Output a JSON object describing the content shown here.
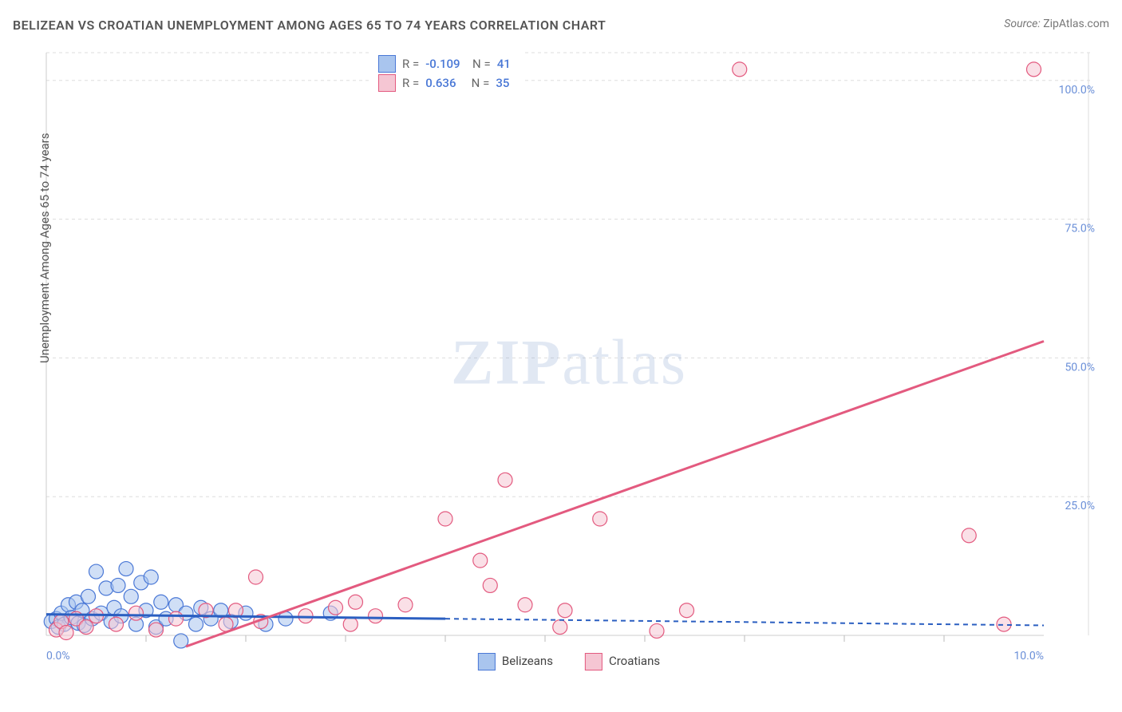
{
  "title": "BELIZEAN VS CROATIAN UNEMPLOYMENT AMONG AGES 65 TO 74 YEARS CORRELATION CHART",
  "source_label": "Source:",
  "source_value": "ZipAtlas.com",
  "ylabel": "Unemployment Among Ages 65 to 74 years",
  "watermark_zip": "ZIP",
  "watermark_atlas": "atlas",
  "chart": {
    "type": "scatter",
    "background_color": "#ffffff",
    "grid_color": "#dddddd",
    "xlim": [
      0,
      10
    ],
    "ylim": [
      0,
      105
    ],
    "xticks": [
      0,
      10
    ],
    "xtick_labels": [
      "0.0%",
      "10.0%"
    ],
    "yticks": [
      25,
      50,
      75,
      100
    ],
    "ytick_labels": [
      "25.0%",
      "50.0%",
      "75.0%",
      "100.0%"
    ],
    "x_minor_ticks": [
      1,
      2,
      3,
      4,
      5,
      6,
      7,
      8,
      9
    ],
    "series": [
      {
        "name": "Belizeans",
        "fill_color": "#a9c5ee",
        "stroke_color": "#4a78d6",
        "line_color": "#2b5fc1",
        "marker_radius": 9,
        "R": "-0.109",
        "N": "41",
        "trend_solid": {
          "x1": 0,
          "y1": 3.8,
          "x2": 4,
          "y2": 3.0
        },
        "trend_dashed": {
          "x1": 4,
          "y1": 3.0,
          "x2": 10,
          "y2": 1.8
        },
        "points": [
          {
            "x": 0.05,
            "y": 2.5
          },
          {
            "x": 0.1,
            "y": 3.0
          },
          {
            "x": 0.12,
            "y": 1.5
          },
          {
            "x": 0.15,
            "y": 4.0
          },
          {
            "x": 0.18,
            "y": 2.0
          },
          {
            "x": 0.22,
            "y": 5.5
          },
          {
            "x": 0.25,
            "y": 3.2
          },
          {
            "x": 0.3,
            "y": 6.0
          },
          {
            "x": 0.32,
            "y": 2.2
          },
          {
            "x": 0.36,
            "y": 4.5
          },
          {
            "x": 0.38,
            "y": 1.8
          },
          {
            "x": 0.42,
            "y": 7.0
          },
          {
            "x": 0.46,
            "y": 3.0
          },
          {
            "x": 0.5,
            "y": 11.5
          },
          {
            "x": 0.55,
            "y": 4.0
          },
          {
            "x": 0.6,
            "y": 8.5
          },
          {
            "x": 0.65,
            "y": 2.5
          },
          {
            "x": 0.68,
            "y": 5.0
          },
          {
            "x": 0.72,
            "y": 9.0
          },
          {
            "x": 0.75,
            "y": 3.5
          },
          {
            "x": 0.8,
            "y": 12.0
          },
          {
            "x": 0.85,
            "y": 7.0
          },
          {
            "x": 0.9,
            "y": 2.0
          },
          {
            "x": 0.95,
            "y": 9.5
          },
          {
            "x": 1.0,
            "y": 4.5
          },
          {
            "x": 1.05,
            "y": 10.5
          },
          {
            "x": 1.1,
            "y": 1.5
          },
          {
            "x": 1.15,
            "y": 6.0
          },
          {
            "x": 1.2,
            "y": 3.0
          },
          {
            "x": 1.3,
            "y": 5.5
          },
          {
            "x": 1.35,
            "y": -1.0
          },
          {
            "x": 1.4,
            "y": 4.0
          },
          {
            "x": 1.5,
            "y": 2.0
          },
          {
            "x": 1.55,
            "y": 5.0
          },
          {
            "x": 1.65,
            "y": 3.0
          },
          {
            "x": 1.75,
            "y": 4.5
          },
          {
            "x": 1.85,
            "y": 2.5
          },
          {
            "x": 2.0,
            "y": 4.0
          },
          {
            "x": 2.2,
            "y": 2.0
          },
          {
            "x": 2.4,
            "y": 3.0
          },
          {
            "x": 2.85,
            "y": 4.0
          }
        ]
      },
      {
        "name": "Croatians",
        "fill_color": "#f5c6d3",
        "stroke_color": "#e35a7f",
        "line_color": "#e35a7f",
        "marker_radius": 9,
        "R": "0.636",
        "N": "35",
        "trend_solid": {
          "x1": 1.4,
          "y1": -2,
          "x2": 10,
          "y2": 53
        },
        "trend_dashed": null,
        "points": [
          {
            "x": 0.1,
            "y": 1.0
          },
          {
            "x": 0.15,
            "y": 2.5
          },
          {
            "x": 0.2,
            "y": 0.5
          },
          {
            "x": 0.3,
            "y": 3.0
          },
          {
            "x": 0.4,
            "y": 1.5
          },
          {
            "x": 0.5,
            "y": 3.5
          },
          {
            "x": 0.7,
            "y": 2.0
          },
          {
            "x": 0.9,
            "y": 4.0
          },
          {
            "x": 1.1,
            "y": 1.0
          },
          {
            "x": 1.3,
            "y": 3.0
          },
          {
            "x": 1.6,
            "y": 4.5
          },
          {
            "x": 1.8,
            "y": 2.0
          },
          {
            "x": 1.9,
            "y": 4.5
          },
          {
            "x": 2.1,
            "y": 10.5
          },
          {
            "x": 2.15,
            "y": 2.5
          },
          {
            "x": 2.6,
            "y": 3.5
          },
          {
            "x": 2.9,
            "y": 5.0
          },
          {
            "x": 3.05,
            "y": 2.0
          },
          {
            "x": 3.1,
            "y": 6.0
          },
          {
            "x": 3.3,
            "y": 3.5
          },
          {
            "x": 3.6,
            "y": 5.5
          },
          {
            "x": 4.0,
            "y": 21.0
          },
          {
            "x": 4.35,
            "y": 13.5
          },
          {
            "x": 4.45,
            "y": 9.0
          },
          {
            "x": 4.6,
            "y": 28.0
          },
          {
            "x": 4.8,
            "y": 5.5
          },
          {
            "x": 5.15,
            "y": 1.5
          },
          {
            "x": 5.2,
            "y": 4.5
          },
          {
            "x": 5.55,
            "y": 21.0
          },
          {
            "x": 6.12,
            "y": 0.8
          },
          {
            "x": 6.42,
            "y": 4.5
          },
          {
            "x": 6.95,
            "y": 102.0
          },
          {
            "x": 9.25,
            "y": 18.0
          },
          {
            "x": 9.6,
            "y": 2.0
          },
          {
            "x": 9.9,
            "y": 102.0
          }
        ]
      }
    ],
    "legend_bottom": [
      {
        "label": "Belizeans",
        "fill": "#a9c5ee",
        "stroke": "#4a78d6"
      },
      {
        "label": "Croatians",
        "fill": "#f5c6d3",
        "stroke": "#e35a7f"
      }
    ]
  }
}
